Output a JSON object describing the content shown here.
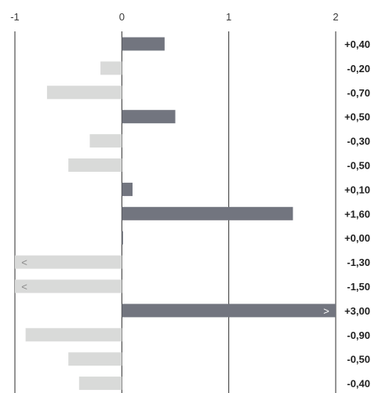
{
  "chart_data": {
    "type": "bar",
    "orientation": "horizontal",
    "x_ticks": [
      "-1",
      "0",
      "1",
      "2"
    ],
    "xlim": [
      -1,
      2
    ],
    "grid": true,
    "values": [
      0.4,
      -0.2,
      -0.7,
      0.5,
      -0.3,
      -0.5,
      0.1,
      1.6,
      0.0,
      -1.3,
      -1.5,
      3.0,
      -0.9,
      -0.5,
      -0.4
    ],
    "value_labels": [
      "+0,40",
      "-0,20",
      "-0,70",
      "+0,50",
      "-0,30",
      "-0,50",
      "+0,10",
      "+1,60",
      "+0,00",
      "-1,30",
      "-1,50",
      "+3,00",
      "-0,90",
      "-0,50",
      "-0,40"
    ],
    "overflow_markers": {
      "below_min": "<",
      "above_max": ">"
    },
    "colors": {
      "positive": "#72757f",
      "negative": "#d9dad9",
      "grid": "#2b2b2b",
      "marker_on_positive": "#ffffff",
      "marker_on_negative": "#8a8a8a"
    }
  }
}
